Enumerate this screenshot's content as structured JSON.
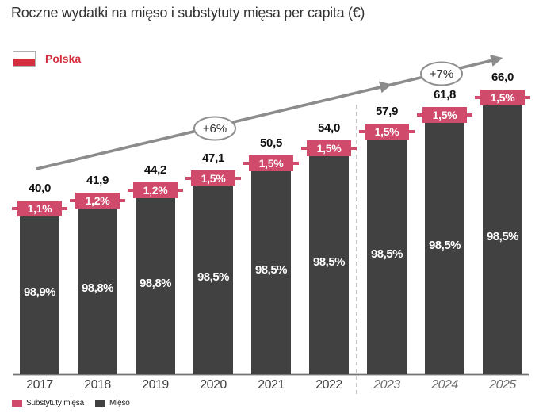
{
  "chart_data": {
    "type": "bar",
    "stacked": true,
    "title": "Roczne wydatki na mięso i substytuty mięsa per capita (€)",
    "country_label": "Polska",
    "xlabel": "",
    "ylabel": "",
    "grid": false,
    "legend_position": "bottom",
    "categories": [
      "2017",
      "2018",
      "2019",
      "2020",
      "2021",
      "2022",
      "2023",
      "2024",
      "2025"
    ],
    "forecast_categories": [
      "2023",
      "2024",
      "2025"
    ],
    "forecast_divider_after": "2022",
    "totals": [
      40.0,
      41.9,
      44.2,
      47.1,
      50.5,
      54.0,
      57.9,
      61.8,
      66.0
    ],
    "total_labels": [
      "40,0",
      "41,9",
      "44,2",
      "47,1",
      "50,5",
      "54,0",
      "57,9",
      "61,8",
      "66,0"
    ],
    "ylim": [
      0,
      70
    ],
    "series": [
      {
        "name": "Substytuty mięsa",
        "color": "#cf4a6b",
        "share_labels": [
          "1,1%",
          "1,2%",
          "1,2%",
          "1,5%",
          "1,5%",
          "1,5%",
          "1,5%",
          "1,5%",
          "1,5%"
        ]
      },
      {
        "name": "Mięso",
        "color": "#414141",
        "share_labels": [
          "98,9%",
          "98,8%",
          "98,8%",
          "98,5%",
          "98,5%",
          "98,5%",
          "98,5%",
          "98,5%",
          "98,5%"
        ]
      }
    ],
    "growth_annotations": [
      {
        "label": "+6%",
        "period": "historical"
      },
      {
        "label": "+7%",
        "period": "forecast"
      }
    ],
    "colors": {
      "substitutes_pink": "#cf4a6b",
      "meat_dark": "#414141",
      "arrow_gray": "#8c8c8c",
      "flag_red": "#d32f3f",
      "axis_gray": "#737373",
      "divider_gray": "#b3b3b3"
    }
  }
}
